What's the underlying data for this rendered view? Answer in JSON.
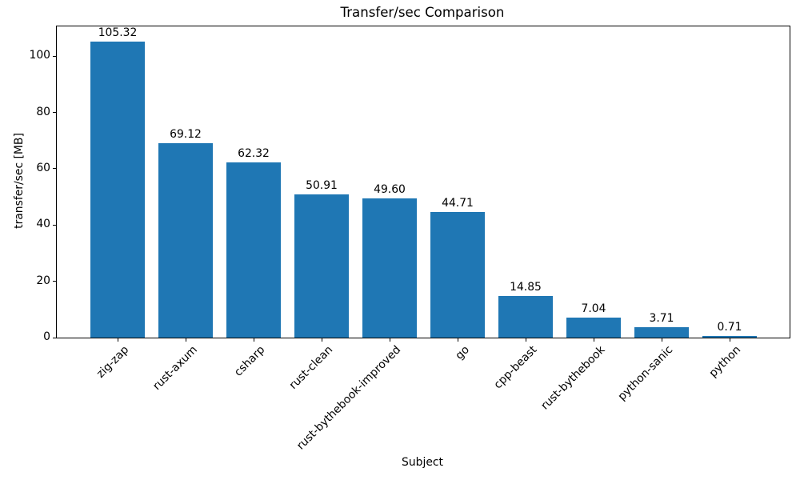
{
  "chart_data": {
    "type": "bar",
    "title": "Transfer/sec Comparison",
    "xlabel": "Subject",
    "ylabel": "transfer/sec [MB]",
    "categories": [
      "zig-zap",
      "rust-axum",
      "csharp",
      "rust-clean",
      "rust-bythebook-improved",
      "go",
      "cpp-beast",
      "rust-bythebook",
      "python-sanic",
      "python"
    ],
    "values": [
      105.32,
      69.12,
      62.32,
      50.91,
      49.6,
      44.71,
      14.85,
      7.04,
      3.71,
      0.71
    ],
    "value_labels": [
      "105.32",
      "69.12",
      "62.32",
      "50.91",
      "49.60",
      "44.71",
      "14.85",
      "7.04",
      "3.71",
      "0.71"
    ],
    "bar_color": "#1f77b4",
    "axis_color": "#000000",
    "text_color": "#000000",
    "background_color": "#ffffff",
    "ylim": [
      0,
      110.59
    ],
    "yticks": [
      0,
      20,
      40,
      60,
      80,
      100
    ],
    "grid": false,
    "legend": "none"
  }
}
